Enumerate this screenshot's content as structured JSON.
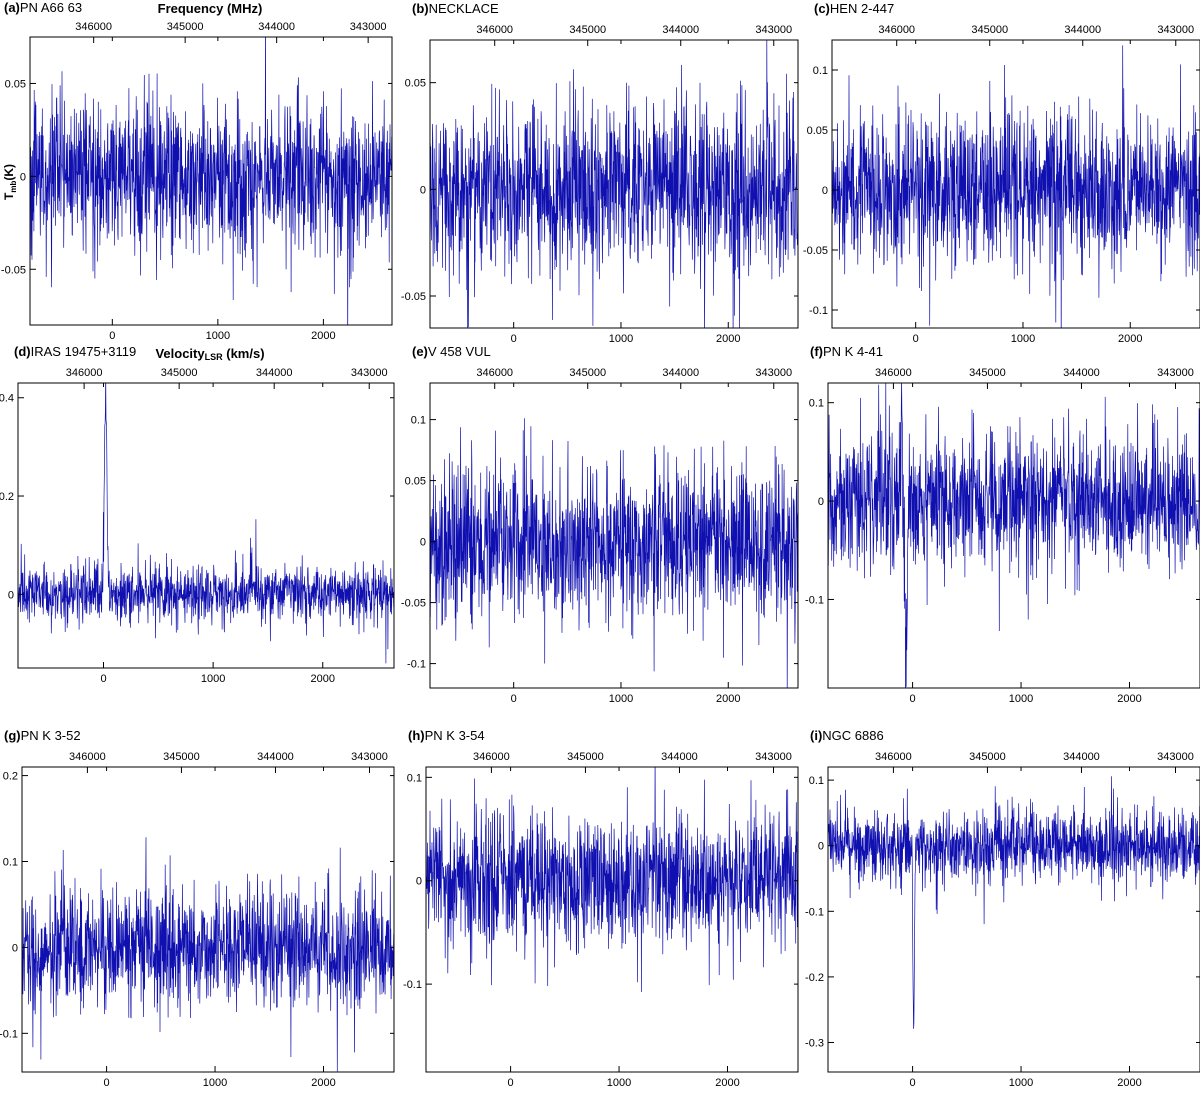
{
  "figure": {
    "freq_axis_label": "Frequency (MHz)",
    "y_axis_label": "T",
    "y_axis_label_sub": "mb",
    "y_axis_label_unit": "(K)",
    "x_axis_label": "Velocity",
    "x_axis_label_sub": "LSR",
    "x_axis_label_unit": "(km/s)",
    "line_color": "#1010b0"
  },
  "chart_data": [
    {
      "type": "line",
      "panel_label": "(a)",
      "title": "PN A66 63",
      "xlim": [
        -780,
        2650
      ],
      "ylim": [
        -0.08,
        0.075
      ],
      "x_ticks": [
        0,
        1000,
        2000
      ],
      "y_ticks": [
        -0.05,
        0,
        0.05
      ],
      "y_tick_labels": [
        "-0.05",
        "0",
        "0.05"
      ],
      "freq_ticks": [
        346000,
        345000,
        344000,
        343000
      ],
      "series": [
        {
          "noise_sigma": 0.02,
          "features": []
        }
      ]
    },
    {
      "type": "line",
      "panel_label": "(b)",
      "title": "NECKLACE",
      "xlim": [
        -780,
        2650
      ],
      "ylim": [
        -0.065,
        0.07
      ],
      "x_ticks": [
        0,
        1000,
        2000
      ],
      "y_ticks": [
        -0.05,
        0,
        0.05
      ],
      "y_tick_labels": [
        "-0.05",
        "0",
        "0.05"
      ],
      "freq_ticks": [
        346000,
        345000,
        344000,
        343000
      ],
      "series": [
        {
          "noise_sigma": 0.02,
          "features": []
        }
      ]
    },
    {
      "type": "line",
      "panel_label": "(c)",
      "title": "HEN 2-447",
      "xlim": [
        -780,
        2650
      ],
      "ylim": [
        -0.115,
        0.125
      ],
      "x_ticks": [
        0,
        1000,
        2000
      ],
      "y_ticks": [
        -0.1,
        -0.05,
        0,
        0.05,
        0.1
      ],
      "y_tick_labels": [
        "-0.1",
        "-0.05",
        "0",
        "0.05",
        "0.1"
      ],
      "freq_ticks": [
        346000,
        345000,
        344000,
        343000
      ],
      "series": [
        {
          "noise_sigma": 0.032,
          "features": []
        }
      ]
    },
    {
      "type": "line",
      "panel_label": "(d)",
      "title": "IRAS 19475+3119",
      "xlim": [
        -780,
        2650
      ],
      "ylim": [
        -0.15,
        0.43
      ],
      "x_ticks": [
        0,
        1000,
        2000
      ],
      "y_ticks": [
        0,
        0.2,
        0.4
      ],
      "y_tick_labels": [
        "0",
        "0.2",
        "0.4"
      ],
      "freq_ticks": [
        346000,
        345000,
        344000,
        343000
      ],
      "series": [
        {
          "noise_sigma": 0.03,
          "features": [
            {
              "x": 20,
              "peak": 0.4,
              "width": 12
            }
          ]
        }
      ]
    },
    {
      "type": "line",
      "panel_label": "(e)",
      "title": "V 458 VUL",
      "xlim": [
        -780,
        2650
      ],
      "ylim": [
        -0.12,
        0.13
      ],
      "x_ticks": [
        0,
        1000,
        2000
      ],
      "y_ticks": [
        -0.1,
        -0.05,
        0,
        0.05,
        0.1
      ],
      "y_tick_labels": [
        "-0.1",
        "-0.05",
        "0",
        "0.05",
        "0.1"
      ],
      "freq_ticks": [
        346000,
        345000,
        344000,
        343000
      ],
      "series": [
        {
          "noise_sigma": 0.032,
          "features": []
        }
      ]
    },
    {
      "type": "line",
      "panel_label": "(f)",
      "title": "PN K 4-41",
      "xlim": [
        -780,
        2650
      ],
      "ylim": [
        -0.19,
        0.12
      ],
      "x_ticks": [
        0,
        1000,
        2000
      ],
      "y_ticks": [
        -0.1,
        0,
        0.1
      ],
      "y_tick_labels": [
        "-0.1",
        "0",
        "0.1"
      ],
      "freq_ticks": [
        346000,
        345000,
        344000,
        343000
      ],
      "series": [
        {
          "noise_sigma": 0.035,
          "features": [
            {
              "x": -100,
              "peak": 0.11,
              "width": 8
            },
            {
              "x": -60,
              "peak": -0.17,
              "width": 8
            }
          ]
        }
      ]
    },
    {
      "type": "line",
      "panel_label": "(g)",
      "title": "PN K 3-52",
      "xlim": [
        -780,
        2650
      ],
      "ylim": [
        -0.145,
        0.21
      ],
      "x_ticks": [
        0,
        1000,
        2000
      ],
      "y_ticks": [
        -0.1,
        0,
        0.1,
        0.2
      ],
      "y_tick_labels": [
        "-0.1",
        "0",
        "0.1",
        "0.2"
      ],
      "freq_ticks": [
        346000,
        345000,
        344000,
        343000
      ],
      "series": [
        {
          "noise_sigma": 0.035,
          "features": []
        }
      ]
    },
    {
      "type": "line",
      "panel_label": "(h)",
      "title": "PN K 3-54",
      "xlim": [
        -780,
        2650
      ],
      "ylim": [
        -0.185,
        0.11
      ],
      "x_ticks": [
        0,
        1000,
        2000
      ],
      "y_ticks": [
        -0.1,
        0,
        0.1
      ],
      "y_tick_labels": [
        "-0.1",
        "0",
        "0.1"
      ],
      "freq_ticks": [
        346000,
        345000,
        344000,
        343000
      ],
      "series": [
        {
          "noise_sigma": 0.033,
          "features": []
        }
      ]
    },
    {
      "type": "line",
      "panel_label": "(i)",
      "title": "NGC 6886",
      "xlim": [
        -780,
        2650
      ],
      "ylim": [
        -0.345,
        0.12
      ],
      "x_ticks": [
        0,
        1000,
        2000
      ],
      "y_ticks": [
        -0.3,
        -0.2,
        -0.1,
        0,
        0.1
      ],
      "y_tick_labels": [
        "-0.3",
        "-0.2",
        "-0.1",
        "0",
        "0.1"
      ],
      "freq_ticks": [
        346000,
        345000,
        344000,
        343000
      ],
      "series": [
        {
          "noise_sigma": 0.028,
          "features": [
            {
              "x": 10,
              "peak": -0.31,
              "width": 6
            }
          ]
        }
      ]
    }
  ]
}
